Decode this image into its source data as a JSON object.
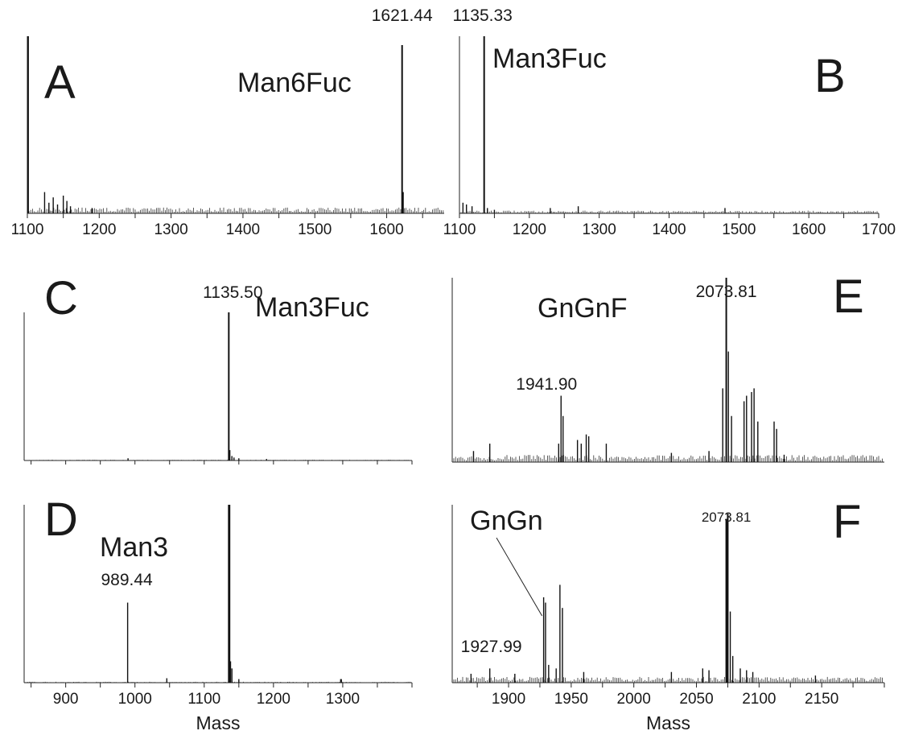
{
  "chart_data": [
    {
      "panel": "A",
      "type": "line",
      "xlim": [
        1100,
        1680
      ],
      "ticks": [
        1100,
        1200,
        1300,
        1400,
        1500,
        1600
      ],
      "xlabel": "",
      "glycan": "Man6Fuc",
      "peaks": [
        {
          "x": 1101,
          "h": 1.0
        },
        {
          "x": 1621.44,
          "h": 0.95,
          "label": "1621.44"
        },
        {
          "x": 1623,
          "h": 0.12
        },
        {
          "x": 1124,
          "h": 0.12
        },
        {
          "x": 1130,
          "h": 0.06
        },
        {
          "x": 1136,
          "h": 0.09
        },
        {
          "x": 1142,
          "h": 0.05
        },
        {
          "x": 1150,
          "h": 0.1
        },
        {
          "x": 1155,
          "h": 0.07
        },
        {
          "x": 1160,
          "h": 0.04
        },
        {
          "x": 1190,
          "h": 0.03
        }
      ],
      "noise": 0.025
    },
    {
      "panel": "B",
      "type": "line",
      "xlim": [
        1100,
        1700
      ],
      "ticks": [
        1100,
        1200,
        1300,
        1400,
        1500,
        1600,
        1700
      ],
      "xlabel": "",
      "glycan": "Man3Fuc",
      "peaks": [
        {
          "x": 1135.33,
          "h": 1.0,
          "label": "1135.33"
        },
        {
          "x": 1105,
          "h": 0.06
        },
        {
          "x": 1110,
          "h": 0.05
        },
        {
          "x": 1118,
          "h": 0.04
        },
        {
          "x": 1140,
          "h": 0.03
        },
        {
          "x": 1150,
          "h": 0.02
        },
        {
          "x": 1230,
          "h": 0.03
        },
        {
          "x": 1270,
          "h": 0.04
        },
        {
          "x": 1480,
          "h": 0.03
        }
      ],
      "noise": 0.012
    },
    {
      "panel": "C",
      "type": "line",
      "xlim": [
        840,
        1400
      ],
      "ticks": [],
      "xlabel": "",
      "glycan": "Man3Fuc",
      "peaks": [
        {
          "x": 1135.5,
          "h": 1.0,
          "label": "1135.50"
        },
        {
          "x": 1137,
          "h": 0.07
        },
        {
          "x": 1140,
          "h": 0.03
        },
        {
          "x": 1143,
          "h": 0.02
        },
        {
          "x": 1150,
          "h": 0.015
        },
        {
          "x": 990,
          "h": 0.015
        },
        {
          "x": 1190,
          "h": 0.01
        }
      ],
      "noise": 0.004
    },
    {
      "panel": "D",
      "type": "line",
      "xlim": [
        840,
        1400
      ],
      "ticks": [
        900,
        1000,
        1100,
        1200,
        1300
      ],
      "xlabel": "Mass",
      "glycan": "Man3",
      "peaks": [
        {
          "x": 1135.5,
          "h": 1.0
        },
        {
          "x": 1136.5,
          "h": 1.0
        },
        {
          "x": 989.44,
          "h": 0.45,
          "label": "989.44"
        },
        {
          "x": 1138,
          "h": 0.12
        },
        {
          "x": 1140,
          "h": 0.08
        },
        {
          "x": 1046,
          "h": 0.025
        },
        {
          "x": 1150,
          "h": 0.02
        },
        {
          "x": 1297,
          "h": 0.02
        },
        {
          "x": 1298,
          "h": 0.02
        }
      ],
      "noise": 0.004
    },
    {
      "panel": "E",
      "type": "line",
      "xlim": [
        1855,
        2200
      ],
      "ticks": [],
      "xlabel": "",
      "glycan": "GnGnF",
      "peaks": [
        {
          "x": 2073.81,
          "h": 1.0,
          "label": "2073.81"
        },
        {
          "x": 2075.5,
          "h": 0.6
        },
        {
          "x": 2071,
          "h": 0.4
        },
        {
          "x": 2078,
          "h": 0.25
        },
        {
          "x": 1941.9,
          "h": 0.36,
          "label": "1941.90"
        },
        {
          "x": 1943.5,
          "h": 0.25
        },
        {
          "x": 1940,
          "h": 0.1
        },
        {
          "x": 1955,
          "h": 0.12
        },
        {
          "x": 1958,
          "h": 0.1
        },
        {
          "x": 1962,
          "h": 0.15
        },
        {
          "x": 1964,
          "h": 0.14
        },
        {
          "x": 2088,
          "h": 0.33
        },
        {
          "x": 2090,
          "h": 0.36
        },
        {
          "x": 2094,
          "h": 0.38
        },
        {
          "x": 2096,
          "h": 0.4
        },
        {
          "x": 2099,
          "h": 0.22
        },
        {
          "x": 2112,
          "h": 0.22
        },
        {
          "x": 2114,
          "h": 0.18
        },
        {
          "x": 1885,
          "h": 0.1
        },
        {
          "x": 1872,
          "h": 0.06
        },
        {
          "x": 1978,
          "h": 0.1
        },
        {
          "x": 2060,
          "h": 0.06
        },
        {
          "x": 2030,
          "h": 0.05
        },
        {
          "x": 2120,
          "h": 0.04
        }
      ],
      "noise": 0.03
    },
    {
      "panel": "F",
      "type": "line",
      "xlim": [
        1855,
        2200
      ],
      "ticks": [
        1900,
        1950,
        2000,
        2050,
        2100,
        2150
      ],
      "xlabel": "Mass",
      "glycan": "GnGn",
      "peaks": [
        {
          "x": 2073.81,
          "h": 0.92,
          "label": "2073.81"
        },
        {
          "x": 2075,
          "h": 0.95
        },
        {
          "x": 2077,
          "h": 0.4
        },
        {
          "x": 2079,
          "h": 0.15
        },
        {
          "x": 1927.99,
          "h": 0.48,
          "label": "1927.99"
        },
        {
          "x": 1929.5,
          "h": 0.45
        },
        {
          "x": 1941,
          "h": 0.55
        },
        {
          "x": 1943,
          "h": 0.42
        },
        {
          "x": 1938,
          "h": 0.08
        },
        {
          "x": 1932,
          "h": 0.1
        },
        {
          "x": 1885,
          "h": 0.08
        },
        {
          "x": 1870,
          "h": 0.05
        },
        {
          "x": 1905,
          "h": 0.05
        },
        {
          "x": 1960,
          "h": 0.06
        },
        {
          "x": 2030,
          "h": 0.06
        },
        {
          "x": 2055,
          "h": 0.08
        },
        {
          "x": 2060,
          "h": 0.07
        },
        {
          "x": 2085,
          "h": 0.08
        },
        {
          "x": 2090,
          "h": 0.07
        },
        {
          "x": 2095,
          "h": 0.06
        },
        {
          "x": 2145,
          "h": 0.04
        }
      ],
      "noise": 0.025
    }
  ]
}
